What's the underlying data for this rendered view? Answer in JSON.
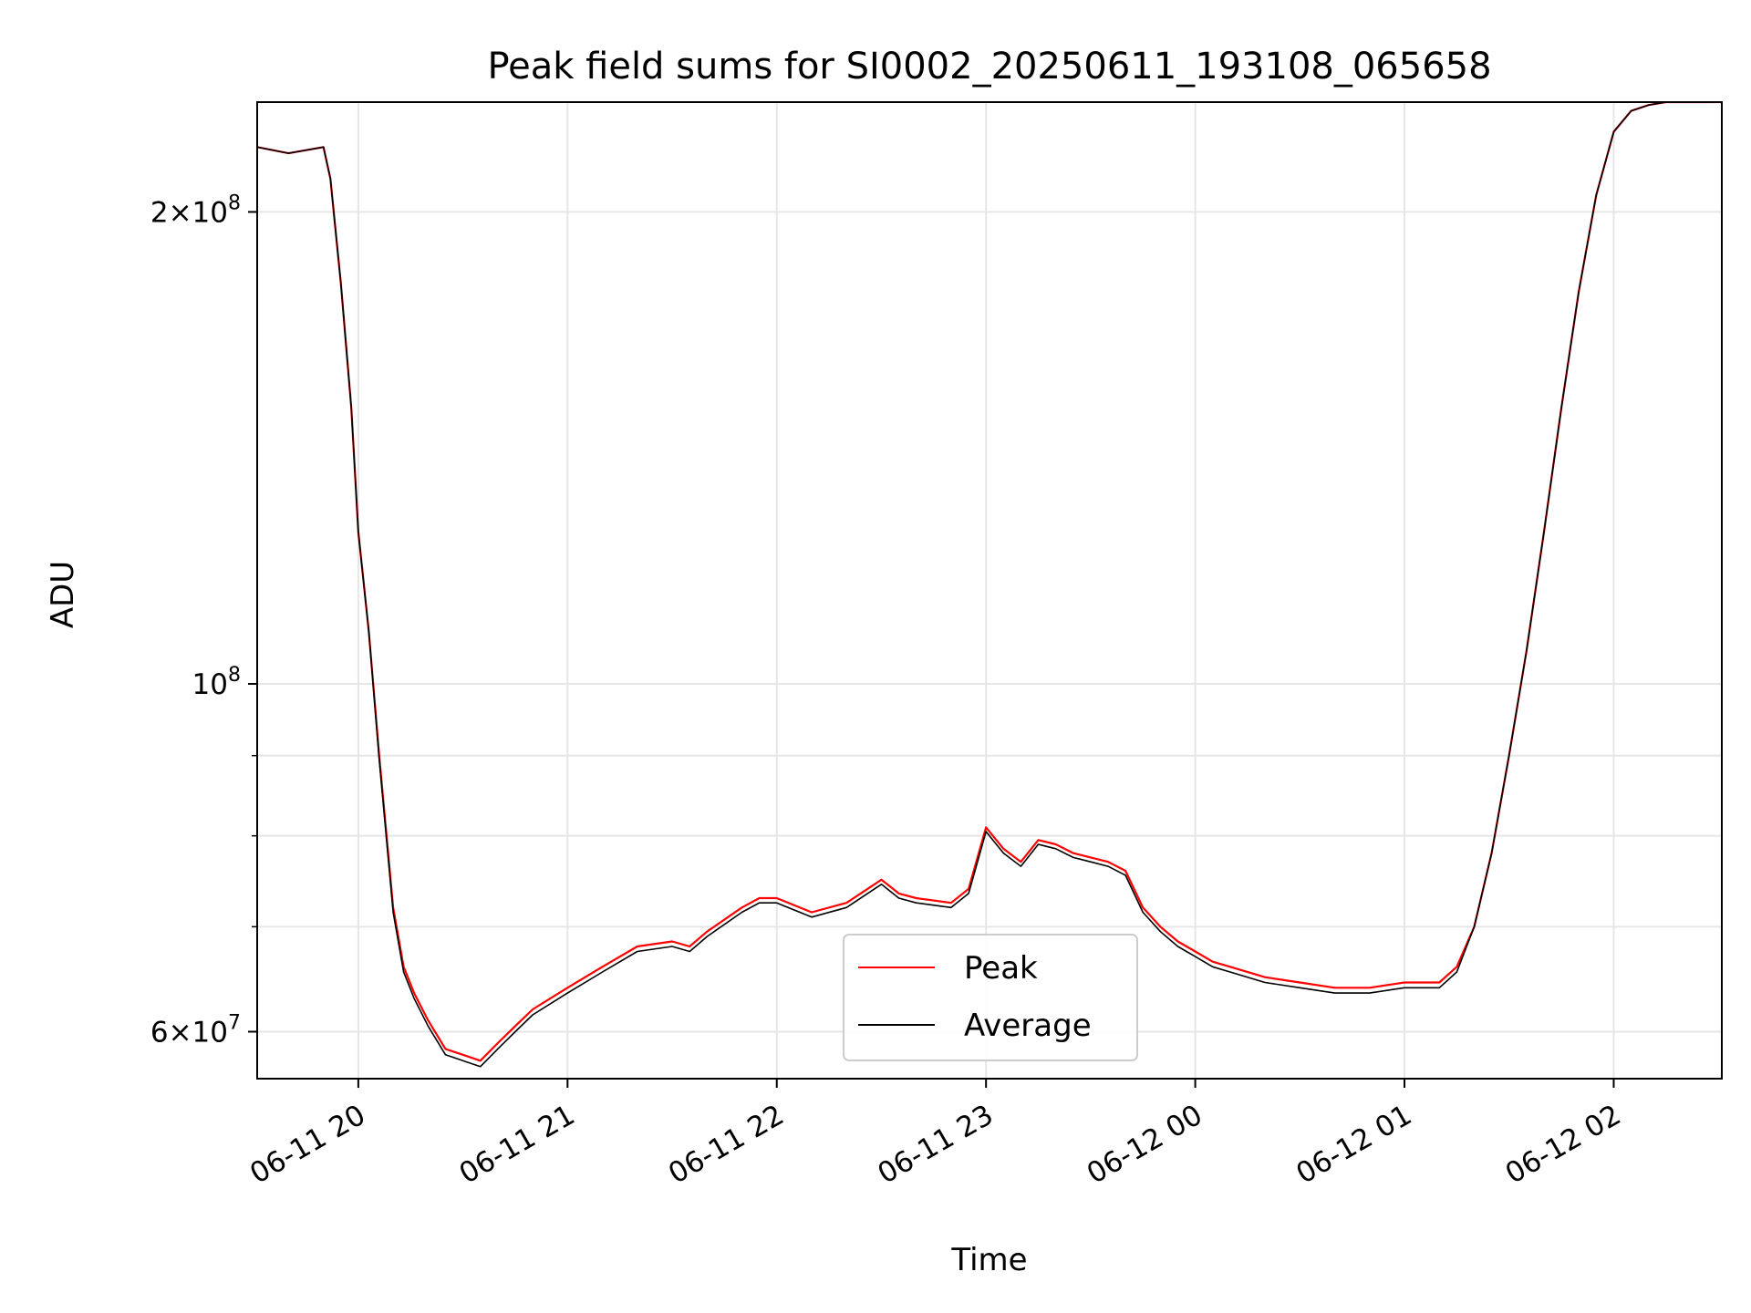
{
  "chart_data": {
    "type": "line",
    "title": "Peak field sums for SI0002_20250611_193108_065658",
    "xlabel": "Time",
    "ylabel": "ADU",
    "y_scale": "log",
    "grid": true,
    "legend_placement": "lower-center",
    "xlim": [
      "2025-06-11 19:31",
      "2025-06-12 02:31"
    ],
    "ylim": [
      56000000,
      235000000
    ],
    "x_ticks": [
      {
        "value": "2025-06-11 20:00",
        "label": "06-11 20"
      },
      {
        "value": "2025-06-11 21:00",
        "label": "06-11 21"
      },
      {
        "value": "2025-06-11 22:00",
        "label": "06-11 22"
      },
      {
        "value": "2025-06-11 23:00",
        "label": "06-11 23"
      },
      {
        "value": "2025-06-12 00:00",
        "label": "06-12 00"
      },
      {
        "value": "2025-06-12 01:00",
        "label": "06-12 01"
      },
      {
        "value": "2025-06-12 02:00",
        "label": "06-12 02"
      }
    ],
    "y_major_ticks": [
      {
        "value": 60000000,
        "mantissa": "6",
        "base": "10",
        "exp": "7"
      },
      {
        "value": 100000000,
        "mantissa": "",
        "base": "10",
        "exp": "8"
      },
      {
        "value": 200000000,
        "mantissa": "2",
        "base": "10",
        "exp": "8"
      }
    ],
    "y_minor_ticks": [
      70000000,
      80000000,
      90000000
    ],
    "series": [
      {
        "name": "Peak",
        "color": "#ff0000",
        "x": [
          "2025-06-11 19:31",
          "2025-06-11 19:40",
          "2025-06-11 19:50",
          "2025-06-11 19:52",
          "2025-06-11 19:55",
          "2025-06-11 19:58",
          "2025-06-11 20:00",
          "2025-06-11 20:03",
          "2025-06-11 20:06",
          "2025-06-11 20:10",
          "2025-06-11 20:13",
          "2025-06-11 20:16",
          "2025-06-11 20:20",
          "2025-06-11 20:25",
          "2025-06-11 20:30",
          "2025-06-11 20:35",
          "2025-06-11 20:40",
          "2025-06-11 20:45",
          "2025-06-11 20:50",
          "2025-06-11 21:00",
          "2025-06-11 21:10",
          "2025-06-11 21:20",
          "2025-06-11 21:30",
          "2025-06-11 21:35",
          "2025-06-11 21:40",
          "2025-06-11 21:50",
          "2025-06-11 21:55",
          "2025-06-11 22:00",
          "2025-06-11 22:10",
          "2025-06-11 22:20",
          "2025-06-11 22:30",
          "2025-06-11 22:35",
          "2025-06-11 22:40",
          "2025-06-11 22:50",
          "2025-06-11 22:55",
          "2025-06-11 23:00",
          "2025-06-11 23:05",
          "2025-06-11 23:10",
          "2025-06-11 23:15",
          "2025-06-11 23:20",
          "2025-06-11 23:25",
          "2025-06-11 23:30",
          "2025-06-11 23:35",
          "2025-06-11 23:40",
          "2025-06-11 23:45",
          "2025-06-11 23:50",
          "2025-06-11 23:55",
          "2025-06-12 00:00",
          "2025-06-12 00:05",
          "2025-06-12 00:10",
          "2025-06-12 00:20",
          "2025-06-12 00:30",
          "2025-06-12 00:40",
          "2025-06-12 00:50",
          "2025-06-12 01:00",
          "2025-06-12 01:10",
          "2025-06-12 01:15",
          "2025-06-12 01:20",
          "2025-06-12 01:25",
          "2025-06-12 01:30",
          "2025-06-12 01:35",
          "2025-06-12 01:40",
          "2025-06-12 01:45",
          "2025-06-12 01:50",
          "2025-06-12 01:55",
          "2025-06-12 02:00",
          "2025-06-12 02:05",
          "2025-06-12 02:10",
          "2025-06-12 02:15",
          "2025-06-12 02:20",
          "2025-06-12 02:31"
        ],
        "y": [
          220000000,
          218000000,
          220000000,
          210000000,
          180000000,
          150000000,
          125000000,
          108000000,
          90000000,
          72000000,
          66000000,
          63500000,
          61000000,
          58500000,
          58000000,
          57500000,
          59000000,
          60500000,
          62000000,
          64000000,
          66000000,
          68000000,
          68500000,
          68000000,
          69500000,
          72000000,
          73000000,
          73000000,
          71500000,
          72500000,
          75000000,
          73500000,
          73000000,
          72500000,
          74000000,
          81000000,
          78500000,
          77000000,
          79500000,
          79000000,
          78000000,
          77500000,
          77000000,
          76000000,
          72000000,
          70000000,
          68500000,
          67500000,
          66500000,
          66000000,
          65000000,
          64500000,
          64000000,
          64000000,
          64500000,
          64500000,
          66000000,
          70000000,
          78000000,
          90000000,
          105000000,
          125000000,
          150000000,
          178000000,
          205000000,
          225000000,
          232000000,
          234000000,
          235000000,
          235000000,
          235000000
        ]
      },
      {
        "name": "Average",
        "color": "#000000",
        "x": [
          "2025-06-11 19:31",
          "2025-06-11 19:40",
          "2025-06-11 19:50",
          "2025-06-11 19:52",
          "2025-06-11 19:55",
          "2025-06-11 19:58",
          "2025-06-11 20:00",
          "2025-06-11 20:03",
          "2025-06-11 20:06",
          "2025-06-11 20:10",
          "2025-06-11 20:13",
          "2025-06-11 20:16",
          "2025-06-11 20:20",
          "2025-06-11 20:25",
          "2025-06-11 20:30",
          "2025-06-11 20:35",
          "2025-06-11 20:40",
          "2025-06-11 20:45",
          "2025-06-11 20:50",
          "2025-06-11 21:00",
          "2025-06-11 21:10",
          "2025-06-11 21:20",
          "2025-06-11 21:30",
          "2025-06-11 21:35",
          "2025-06-11 21:40",
          "2025-06-11 21:50",
          "2025-06-11 21:55",
          "2025-06-11 22:00",
          "2025-06-11 22:10",
          "2025-06-11 22:20",
          "2025-06-11 22:30",
          "2025-06-11 22:35",
          "2025-06-11 22:40",
          "2025-06-11 22:50",
          "2025-06-11 22:55",
          "2025-06-11 23:00",
          "2025-06-11 23:05",
          "2025-06-11 23:10",
          "2025-06-11 23:15",
          "2025-06-11 23:20",
          "2025-06-11 23:25",
          "2025-06-11 23:30",
          "2025-06-11 23:35",
          "2025-06-11 23:40",
          "2025-06-11 23:45",
          "2025-06-11 23:50",
          "2025-06-11 23:55",
          "2025-06-12 00:00",
          "2025-06-12 00:05",
          "2025-06-12 00:10",
          "2025-06-12 00:20",
          "2025-06-12 00:30",
          "2025-06-12 00:40",
          "2025-06-12 00:50",
          "2025-06-12 01:00",
          "2025-06-12 01:10",
          "2025-06-12 01:15",
          "2025-06-12 01:20",
          "2025-06-12 01:25",
          "2025-06-12 01:30",
          "2025-06-12 01:35",
          "2025-06-12 01:40",
          "2025-06-12 01:45",
          "2025-06-12 01:50",
          "2025-06-12 01:55",
          "2025-06-12 02:00",
          "2025-06-12 02:05",
          "2025-06-12 02:10",
          "2025-06-12 02:15",
          "2025-06-12 02:20",
          "2025-06-12 02:31"
        ],
        "y": [
          220000000,
          218000000,
          220000000,
          210000000,
          180000000,
          150000000,
          125000000,
          108000000,
          89500000,
          71500000,
          65500000,
          63000000,
          60500000,
          58000000,
          57500000,
          57000000,
          58500000,
          60000000,
          61500000,
          63500000,
          65500000,
          67500000,
          68000000,
          67500000,
          69000000,
          71500000,
          72500000,
          72500000,
          71000000,
          72000000,
          74500000,
          73000000,
          72500000,
          72000000,
          73500000,
          80500000,
          78000000,
          76500000,
          79000000,
          78500000,
          77500000,
          77000000,
          76500000,
          75500000,
          71500000,
          69500000,
          68000000,
          67000000,
          66000000,
          65500000,
          64500000,
          64000000,
          63500000,
          63500000,
          64000000,
          64000000,
          65500000,
          70000000,
          78000000,
          90000000,
          105000000,
          125000000,
          150000000,
          178000000,
          205000000,
          225000000,
          232000000,
          234000000,
          235000000,
          235000000,
          235000000
        ]
      }
    ]
  }
}
